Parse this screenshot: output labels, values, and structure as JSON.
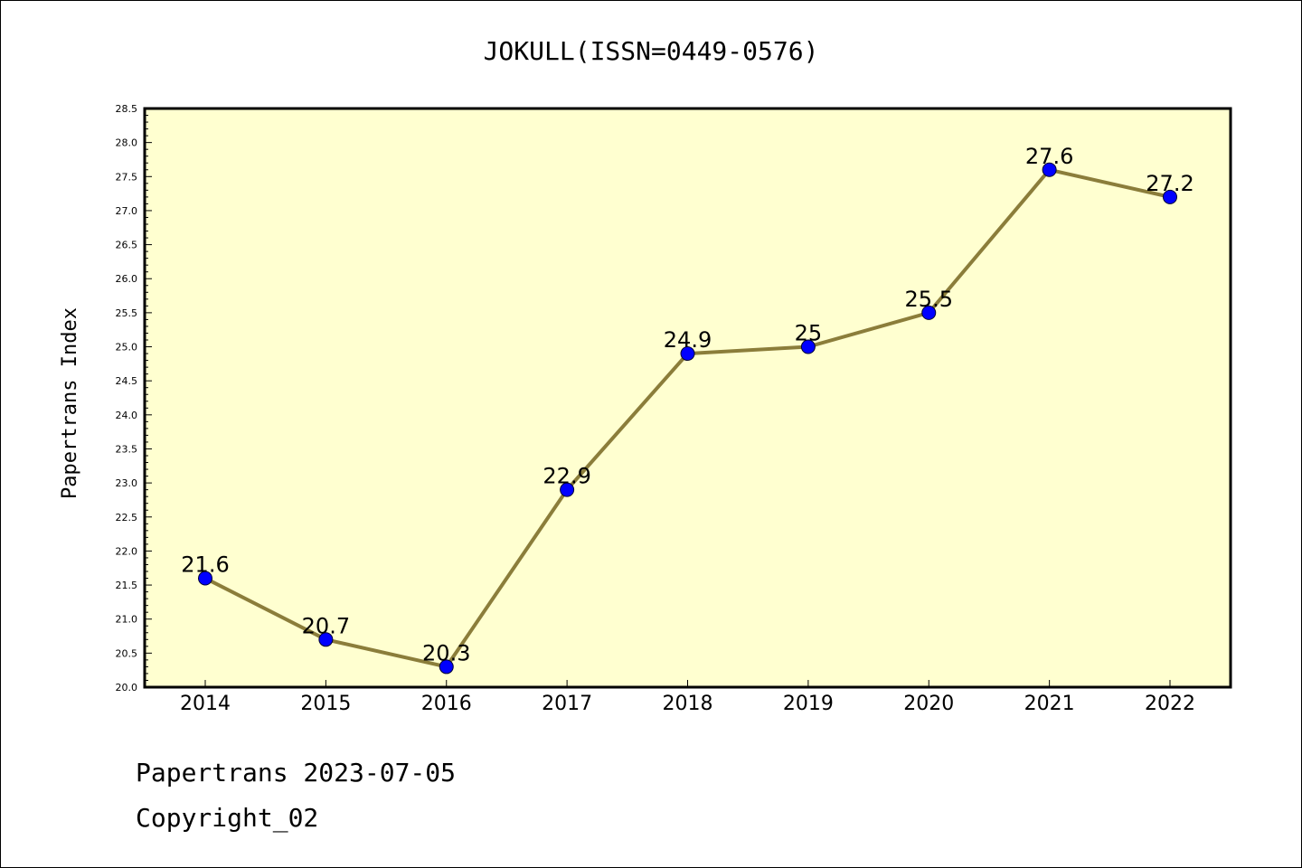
{
  "chart_data": {
    "type": "line",
    "title": "JOKULL(ISSN=0449-0576)",
    "xlabel": "",
    "ylabel": "Papertrans Index",
    "categories": [
      "2014",
      "2015",
      "2016",
      "2017",
      "2018",
      "2019",
      "2020",
      "2021",
      "2022"
    ],
    "series": [
      {
        "values": [
          21.6,
          20.7,
          20.3,
          22.9,
          24.9,
          25,
          25.5,
          27.6,
          27.2
        ]
      }
    ],
    "data_labels": [
      "21.6",
      "20.7",
      "20.3",
      "22.9",
      "24.9",
      "25",
      "25.5",
      "27.6",
      "27.2"
    ],
    "ylim": [
      20.0,
      28.5
    ],
    "yticks": [
      "20.0",
      "20.5",
      "21.0",
      "21.5",
      "22.0",
      "22.5",
      "23.0",
      "23.5",
      "24.0",
      "24.5",
      "25.0",
      "25.5",
      "26.0",
      "26.5",
      "27.0",
      "27.5",
      "28.0",
      "28.5"
    ],
    "grid": false,
    "legend": "none"
  },
  "footer": {
    "line1": "Papertrans 2023-07-05",
    "line2": "Copyright_02"
  },
  "colors": {
    "plot_background": "#ffffd0",
    "line": "#8b7d3a",
    "marker": "#0000ff"
  }
}
